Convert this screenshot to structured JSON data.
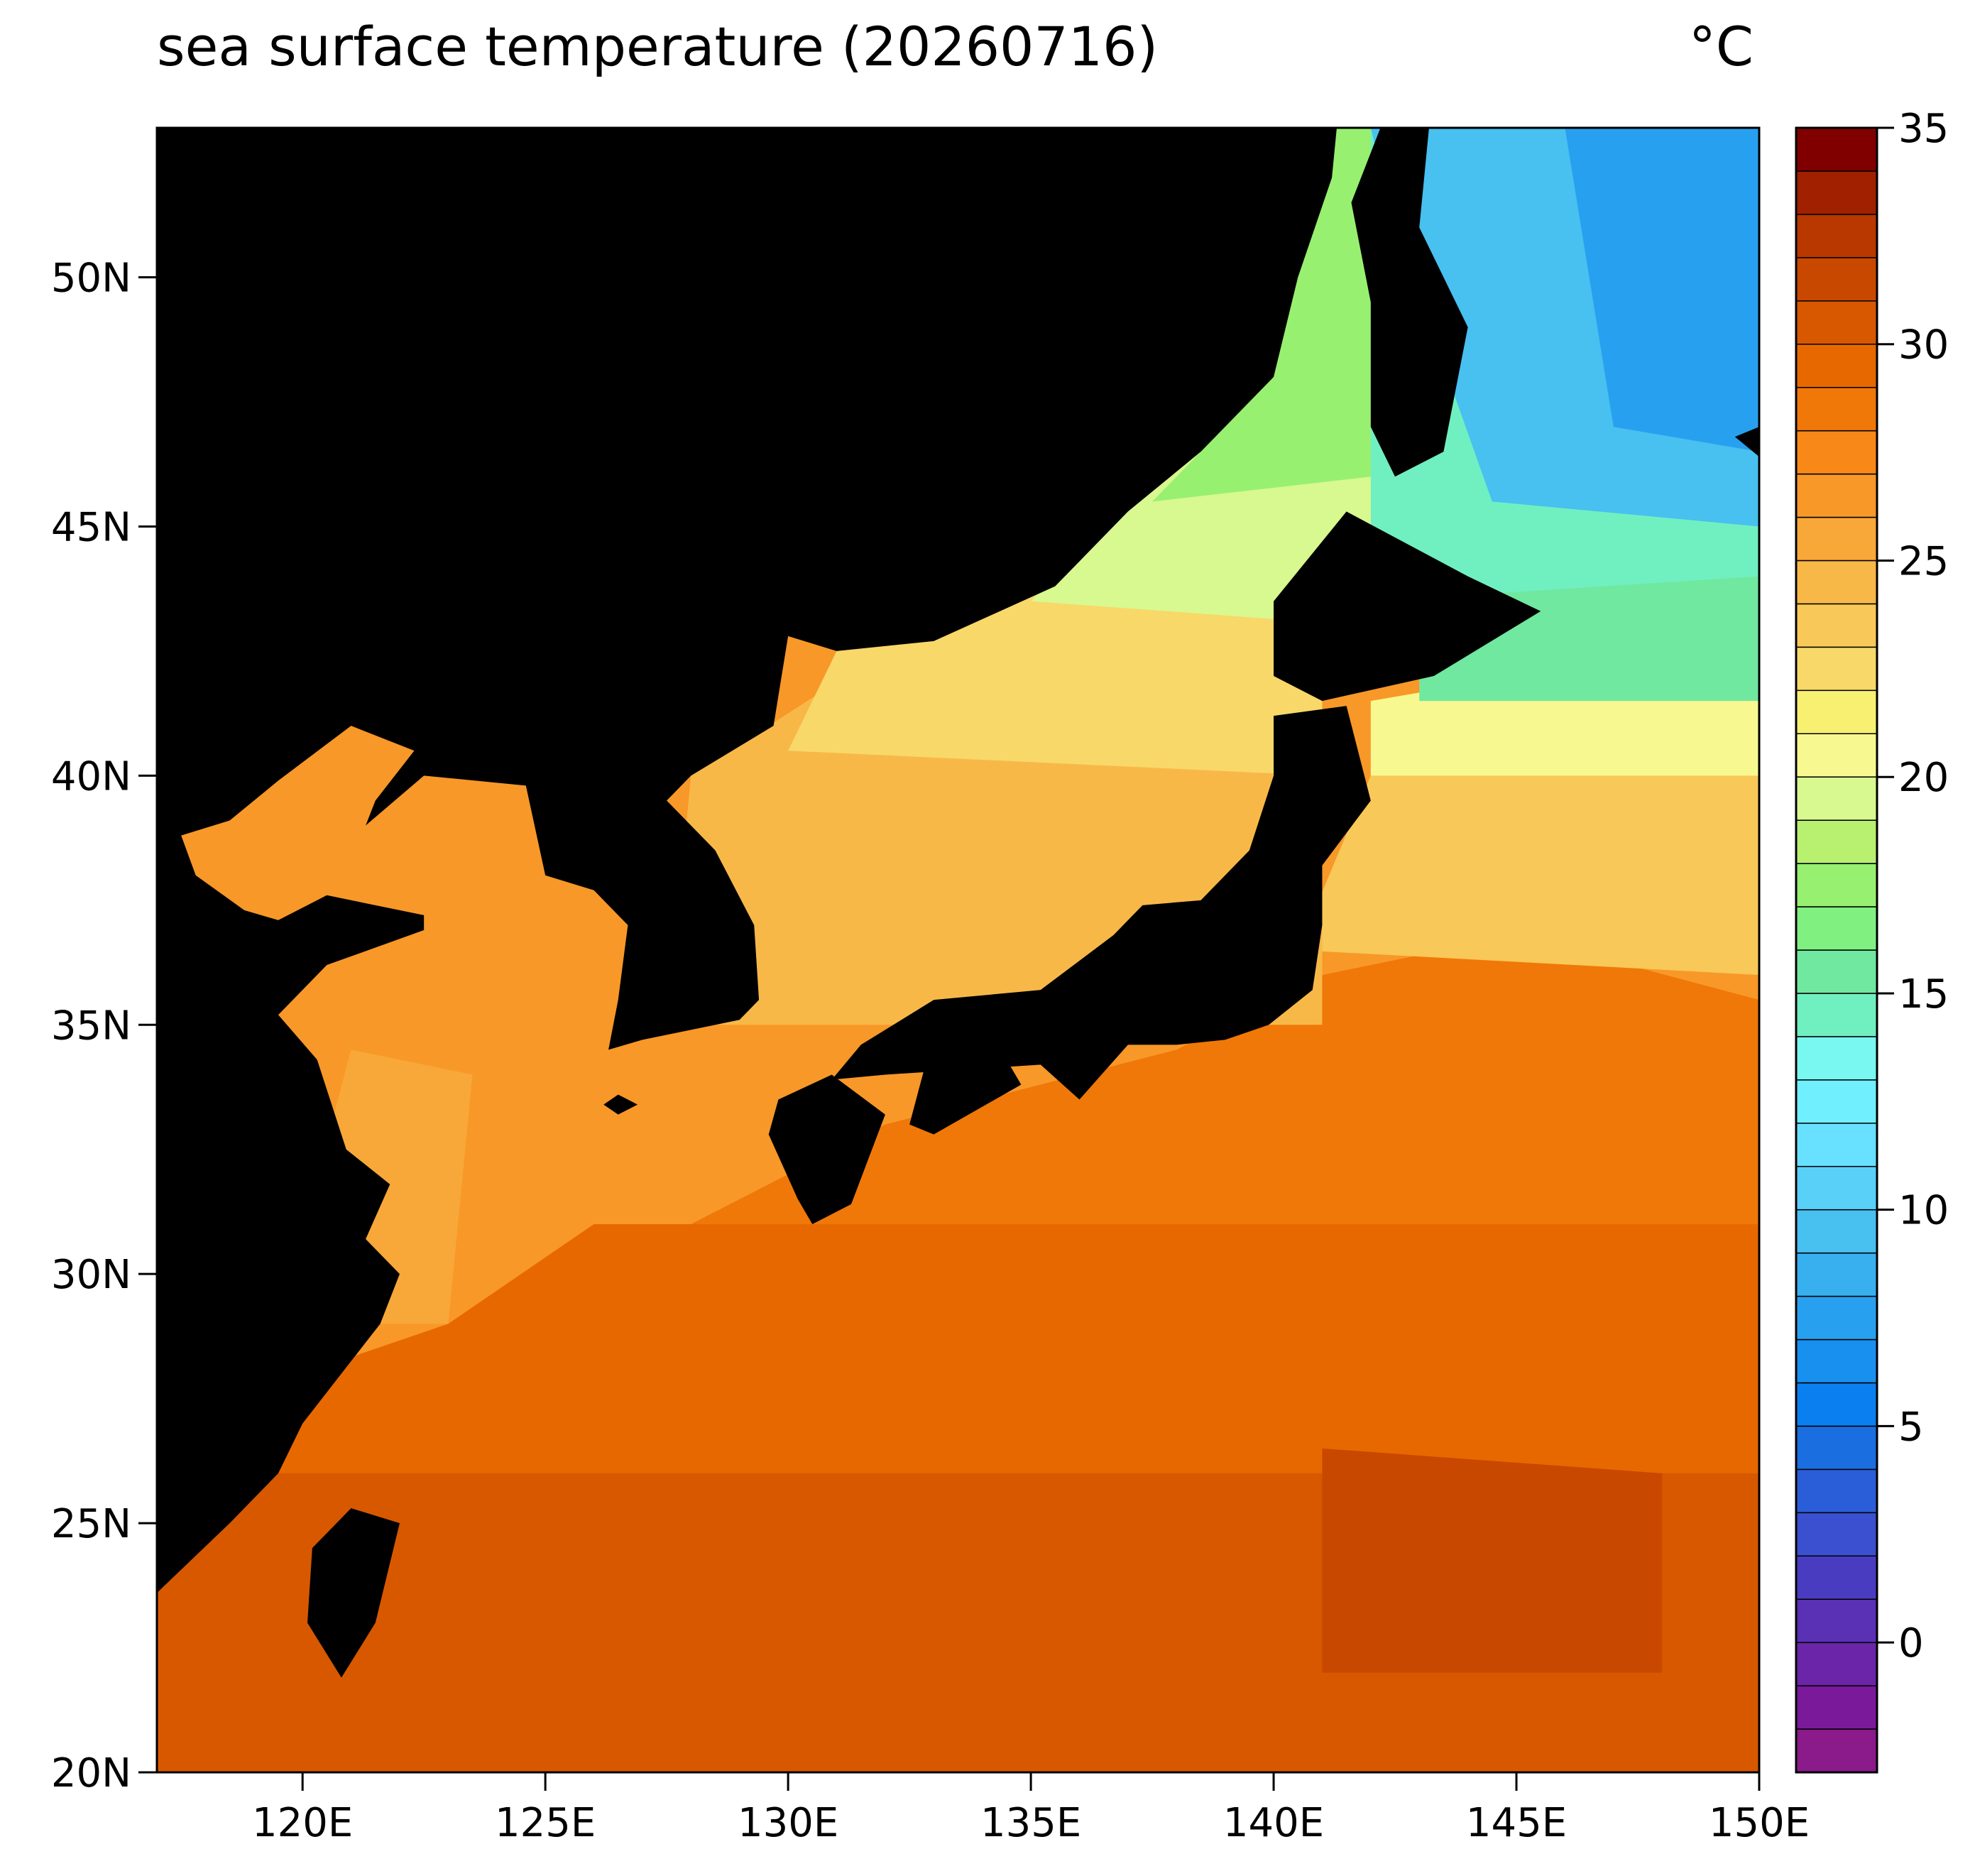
{
  "chart_data": {
    "type": "map",
    "title": "sea surface temperature (20260716)",
    "unit": "°C",
    "xlim": [
      117,
      150
    ],
    "ylim": [
      20,
      53
    ],
    "xticks": [
      {
        "value": 120,
        "label": "120E"
      },
      {
        "value": 125,
        "label": "125E"
      },
      {
        "value": 130,
        "label": "130E"
      },
      {
        "value": 135,
        "label": "135E"
      },
      {
        "value": 140,
        "label": "140E"
      },
      {
        "value": 145,
        "label": "145E"
      },
      {
        "value": 150,
        "label": "150E"
      }
    ],
    "yticks": [
      {
        "value": 20,
        "label": "20N"
      },
      {
        "value": 25,
        "label": "25N"
      },
      {
        "value": 30,
        "label": "30N"
      },
      {
        "value": 35,
        "label": "35N"
      },
      {
        "value": 40,
        "label": "40N"
      },
      {
        "value": 45,
        "label": "45N"
      },
      {
        "value": 50,
        "label": "50N"
      }
    ],
    "colorbar": {
      "clim": [
        -3,
        35
      ],
      "ticks": [
        0,
        5,
        10,
        15,
        20,
        25,
        30,
        35
      ],
      "colors": [
        "#8b1a8b",
        "#7a1a9a",
        "#6a25a8",
        "#5a30b5",
        "#4a3cc0",
        "#3a50d0",
        "#2a5ed8",
        "#1a6ee0",
        "#0a80f0",
        "#1890f0",
        "#28a0f0",
        "#38b0f0",
        "#48c0f0",
        "#58d0f8",
        "#68e0ff",
        "#70f0ff",
        "#78f8f0",
        "#70f0c0",
        "#70e8a0",
        "#80f080",
        "#98f070",
        "#b8f070",
        "#d8f890",
        "#f8f890",
        "#f8f070",
        "#f8d868",
        "#f8c858",
        "#f8b848",
        "#f8a838",
        "#f89828",
        "#f88818",
        "#f07808",
        "#e86800",
        "#d85800",
        "#c84800",
        "#b83800",
        "#a02000",
        "#800000"
      ]
    },
    "land_color": "#000000"
  }
}
